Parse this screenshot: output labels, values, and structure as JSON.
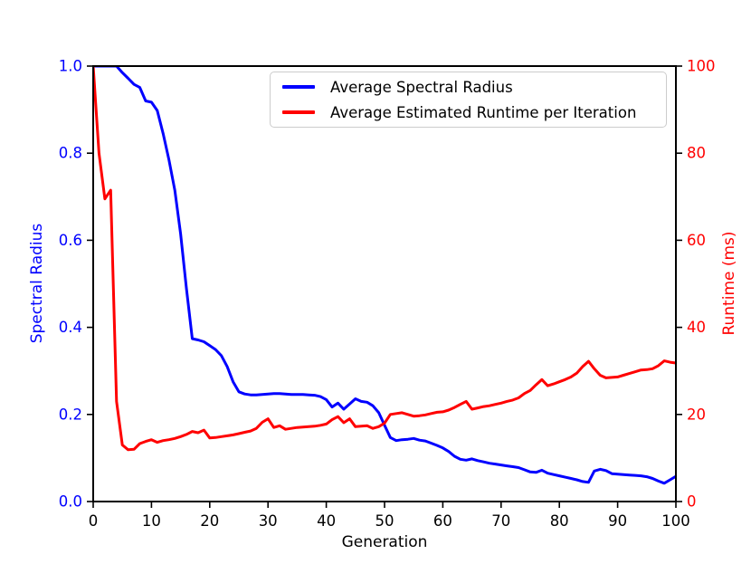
{
  "figure": {
    "background": "#ffffff",
    "spine_color": "#000000"
  },
  "legend": {
    "items": [
      {
        "label": "Average Spectral Radius",
        "color": "#0000ff"
      },
      {
        "label": "Average Estimated Runtime per Iteration",
        "color": "#ff0000"
      }
    ]
  },
  "chart_data": {
    "type": "line",
    "title": "",
    "xlabel": "Generation",
    "grid": false,
    "legend_position": "upper right inside",
    "axes": {
      "x": {
        "label": "Generation",
        "range": [
          0,
          100
        ],
        "ticks": [
          0,
          10,
          20,
          30,
          40,
          50,
          60,
          70,
          80,
          90,
          100
        ],
        "color": "#000000"
      },
      "y_left": {
        "label": "Spectral Radius",
        "range": [
          0,
          1
        ],
        "ticks": [
          "0.0",
          "0.2",
          "0.4",
          "0.6",
          "0.8",
          "1.0"
        ],
        "color": "#0000ff"
      },
      "y_right": {
        "label": "Runtime (ms)",
        "range": [
          0,
          100
        ],
        "ticks": [
          0,
          20,
          40,
          60,
          80,
          100
        ],
        "color": "#ff0000"
      }
    },
    "x": [
      0,
      1,
      2,
      3,
      4,
      5,
      6,
      7,
      8,
      9,
      10,
      11,
      12,
      13,
      14,
      15,
      16,
      17,
      18,
      19,
      20,
      21,
      22,
      23,
      24,
      25,
      26,
      27,
      28,
      29,
      30,
      31,
      32,
      33,
      34,
      35,
      36,
      37,
      38,
      39,
      40,
      41,
      42,
      43,
      44,
      45,
      46,
      47,
      48,
      49,
      50,
      51,
      52,
      53,
      54,
      55,
      56,
      57,
      58,
      59,
      60,
      61,
      62,
      63,
      64,
      65,
      66,
      67,
      68,
      69,
      70,
      71,
      72,
      73,
      74,
      75,
      76,
      77,
      78,
      79,
      80,
      81,
      82,
      83,
      84,
      85,
      86,
      87,
      88,
      89,
      90,
      91,
      92,
      93,
      94,
      95,
      96,
      97,
      98,
      99,
      100
    ],
    "series": [
      {
        "name": "Average Spectral Radius",
        "axis": "left",
        "color": "#0000ff",
        "values": [
          1.0,
          1.0,
          1.0,
          1.0,
          1.0,
          0.985,
          0.972,
          0.958,
          0.951,
          0.92,
          0.917,
          0.898,
          0.845,
          0.785,
          0.715,
          0.615,
          0.49,
          0.374,
          0.371,
          0.367,
          0.358,
          0.349,
          0.335,
          0.31,
          0.275,
          0.252,
          0.247,
          0.245,
          0.245,
          0.246,
          0.247,
          0.248,
          0.248,
          0.247,
          0.246,
          0.246,
          0.246,
          0.245,
          0.244,
          0.241,
          0.234,
          0.217,
          0.226,
          0.212,
          0.224,
          0.236,
          0.23,
          0.228,
          0.22,
          0.204,
          0.175,
          0.147,
          0.14,
          0.142,
          0.143,
          0.145,
          0.141,
          0.139,
          0.134,
          0.129,
          0.123,
          0.115,
          0.104,
          0.097,
          0.095,
          0.098,
          0.094,
          0.091,
          0.088,
          0.086,
          0.084,
          0.082,
          0.08,
          0.078,
          0.073,
          0.068,
          0.067,
          0.072,
          0.065,
          0.062,
          0.059,
          0.056,
          0.053,
          0.05,
          0.046,
          0.044,
          0.07,
          0.074,
          0.071,
          0.064,
          0.063,
          0.062,
          0.061,
          0.06,
          0.059,
          0.057,
          0.053,
          0.047,
          0.042,
          0.05,
          0.058
        ]
      },
      {
        "name": "Average Estimated Runtime per Iteration",
        "axis": "right",
        "color": "#ff0000",
        "values": [
          100,
          80,
          69.5,
          71.5,
          23,
          13,
          11.9,
          12,
          13.3,
          13.8,
          14.2,
          13.6,
          14,
          14.2,
          14.5,
          14.9,
          15.4,
          16.1,
          15.8,
          16.4,
          14.6,
          14.7,
          14.9,
          15.1,
          15.3,
          15.6,
          15.9,
          16.2,
          16.8,
          18.2,
          19,
          17,
          17.4,
          16.6,
          16.8,
          17,
          17.1,
          17.2,
          17.3,
          17.5,
          17.8,
          18.8,
          19.5,
          18.1,
          19,
          17.2,
          17.3,
          17.4,
          16.8,
          17.2,
          18,
          20,
          20.2,
          20.4,
          20,
          19.6,
          19.7,
          19.9,
          20.2,
          20.5,
          20.6,
          21,
          21.6,
          22.3,
          23,
          21.2,
          21.5,
          21.8,
          22,
          22.3,
          22.6,
          23,
          23.3,
          23.8,
          24.8,
          25.5,
          26.8,
          28,
          26.6,
          27,
          27.5,
          28,
          28.6,
          29.5,
          31,
          32.2,
          30.5,
          29,
          28.4,
          28.5,
          28.6,
          29,
          29.4,
          29.8,
          30.2,
          30.3,
          30.5,
          31.2,
          32.3,
          32,
          31.8
        ]
      }
    ]
  }
}
